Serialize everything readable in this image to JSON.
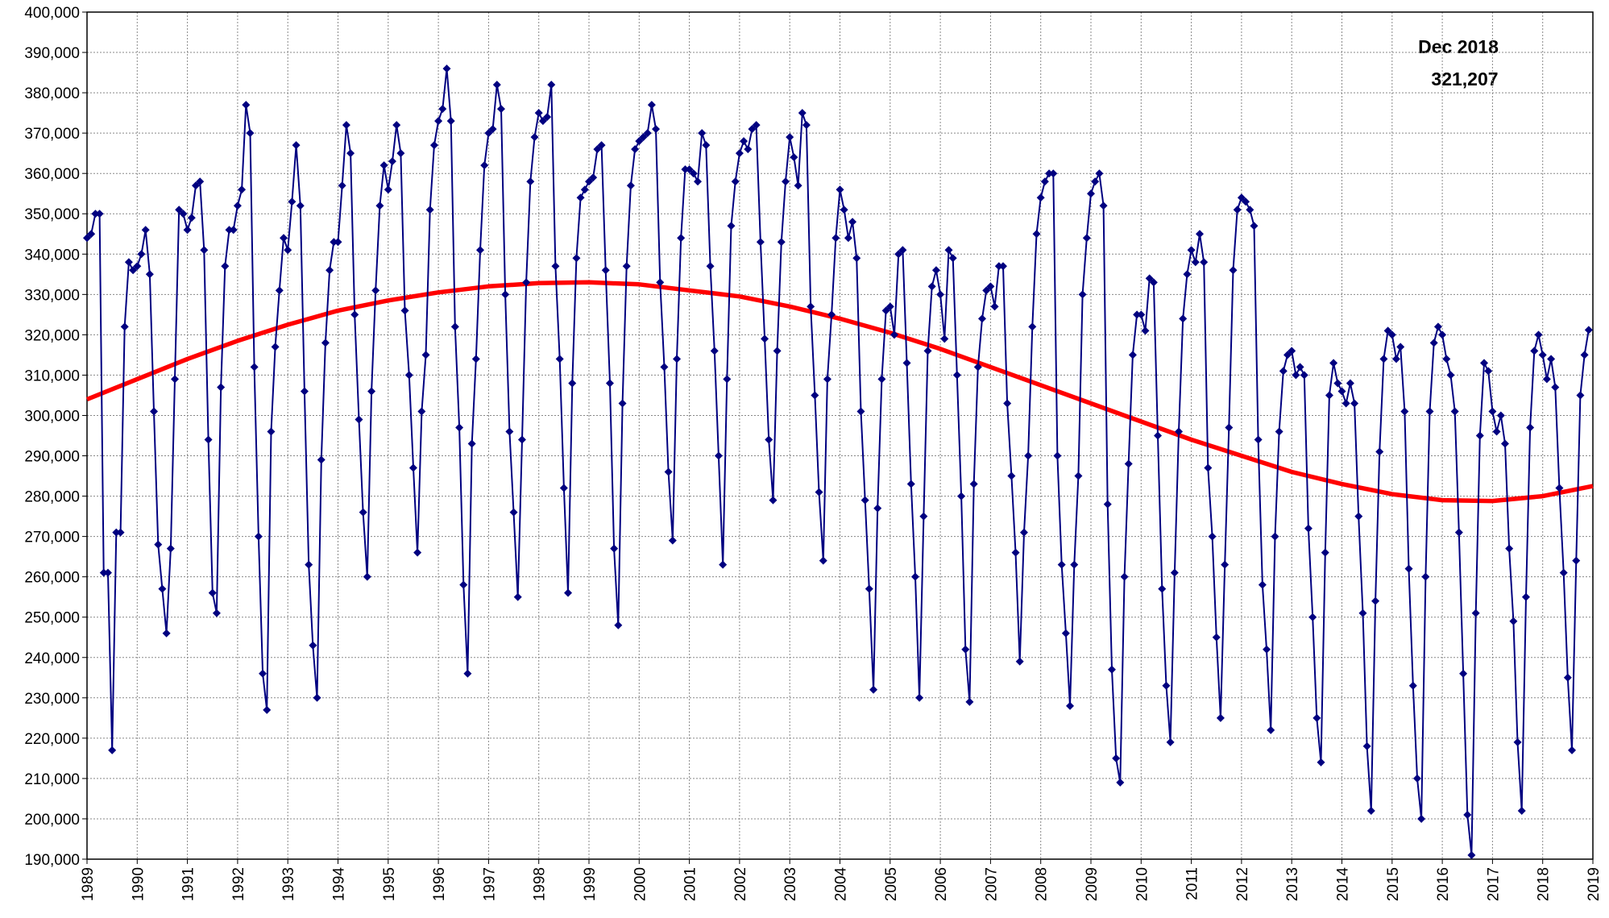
{
  "chart_data": {
    "type": "line",
    "annotations": [
      "Dec 2018",
      "321,207"
    ],
    "xlim": [
      1989,
      2019
    ],
    "xticks": [
      1989,
      1990,
      1991,
      1992,
      1993,
      1994,
      1995,
      1996,
      1997,
      1998,
      1999,
      2000,
      2001,
      2002,
      2003,
      2004,
      2005,
      2006,
      2007,
      2008,
      2009,
      2010,
      2011,
      2012,
      2013,
      2014,
      2015,
      2016,
      2017,
      2018,
      2019
    ],
    "ylim": [
      190000,
      400000
    ],
    "yticks": [
      {
        "value": 190000,
        "label": "190,000"
      },
      {
        "value": 200000,
        "label": "200,000"
      },
      {
        "value": 210000,
        "label": "210,000"
      },
      {
        "value": 220000,
        "label": "220,000"
      },
      {
        "value": 230000,
        "label": "230,000"
      },
      {
        "value": 240000,
        "label": "240,000"
      },
      {
        "value": 250000,
        "label": "250,000"
      },
      {
        "value": 260000,
        "label": "260,000"
      },
      {
        "value": 270000,
        "label": "270,000"
      },
      {
        "value": 280000,
        "label": "280,000"
      },
      {
        "value": 290000,
        "label": "290,000"
      },
      {
        "value": 300000,
        "label": "300,000"
      },
      {
        "value": 310000,
        "label": "310,000"
      },
      {
        "value": 320000,
        "label": "320,000"
      },
      {
        "value": 330000,
        "label": "330,000"
      },
      {
        "value": 340000,
        "label": "340,000"
      },
      {
        "value": 350000,
        "label": "350,000"
      },
      {
        "value": 360000,
        "label": "360,000"
      },
      {
        "value": 370000,
        "label": "370,000"
      },
      {
        "value": 380000,
        "label": "380,000"
      },
      {
        "value": 390000,
        "label": "390,000"
      },
      {
        "value": 400000,
        "label": "400,000"
      }
    ],
    "grid": true,
    "series": [
      {
        "color": "#000080",
        "marker": "diamond",
        "x": [
          1989,
          1989.083,
          1989.167,
          1989.25,
          1989.333,
          1989.417,
          1989.5,
          1989.583,
          1989.667,
          1989.75,
          1989.833,
          1989.917,
          1990,
          1990.083,
          1990.167,
          1990.25,
          1990.333,
          1990.417,
          1990.5,
          1990.583,
          1990.667,
          1990.75,
          1990.833,
          1990.917,
          1991,
          1991.083,
          1991.167,
          1991.25,
          1991.333,
          1991.417,
          1991.5,
          1991.583,
          1991.667,
          1991.75,
          1991.833,
          1991.917,
          1992,
          1992.083,
          1992.167,
          1992.25,
          1992.333,
          1992.417,
          1992.5,
          1992.583,
          1992.667,
          1992.75,
          1992.833,
          1992.917,
          1993,
          1993.083,
          1993.167,
          1993.25,
          1993.333,
          1993.417,
          1993.5,
          1993.583,
          1993.667,
          1993.75,
          1993.833,
          1993.917,
          1994,
          1994.083,
          1994.167,
          1994.25,
          1994.333,
          1994.417,
          1994.5,
          1994.583,
          1994.667,
          1994.75,
          1994.833,
          1994.917,
          1995,
          1995.083,
          1995.167,
          1995.25,
          1995.333,
          1995.417,
          1995.5,
          1995.583,
          1995.667,
          1995.75,
          1995.833,
          1995.917,
          1996,
          1996.083,
          1996.167,
          1996.25,
          1996.333,
          1996.417,
          1996.5,
          1996.583,
          1996.667,
          1996.75,
          1996.833,
          1996.917,
          1997,
          1997.083,
          1997.167,
          1997.25,
          1997.333,
          1997.417,
          1997.5,
          1997.583,
          1997.667,
          1997.75,
          1997.833,
          1997.917,
          1998,
          1998.083,
          1998.167,
          1998.25,
          1998.333,
          1998.417,
          1998.5,
          1998.583,
          1998.667,
          1998.75,
          1998.833,
          1998.917,
          1999,
          1999.083,
          1999.167,
          1999.25,
          1999.333,
          1999.417,
          1999.5,
          1999.583,
          1999.667,
          1999.75,
          1999.833,
          1999.917,
          2000,
          2000.083,
          2000.167,
          2000.25,
          2000.333,
          2000.417,
          2000.5,
          2000.583,
          2000.667,
          2000.75,
          2000.833,
          2000.917,
          2001,
          2001.083,
          2001.167,
          2001.25,
          2001.333,
          2001.417,
          2001.5,
          2001.583,
          2001.667,
          2001.75,
          2001.833,
          2001.917,
          2002,
          2002.083,
          2002.167,
          2002.25,
          2002.333,
          2002.417,
          2002.5,
          2002.583,
          2002.667,
          2002.75,
          2002.833,
          2002.917,
          2003,
          2003.083,
          2003.167,
          2003.25,
          2003.333,
          2003.417,
          2003.5,
          2003.583,
          2003.667,
          2003.75,
          2003.833,
          2003.917,
          2004,
          2004.083,
          2004.167,
          2004.25,
          2004.333,
          2004.417,
          2004.5,
          2004.583,
          2004.667,
          2004.75,
          2004.833,
          2004.917,
          2005,
          2005.083,
          2005.167,
          2005.25,
          2005.333,
          2005.417,
          2005.5,
          2005.583,
          2005.667,
          2005.75,
          2005.833,
          2005.917,
          2006,
          2006.083,
          2006.167,
          2006.25,
          2006.333,
          2006.417,
          2006.5,
          2006.583,
          2006.667,
          2006.75,
          2006.833,
          2006.917,
          2007,
          2007.083,
          2007.167,
          2007.25,
          2007.333,
          2007.417,
          2007.5,
          2007.583,
          2007.667,
          2007.75,
          2007.833,
          2007.917,
          2008,
          2008.083,
          2008.167,
          2008.25,
          2008.333,
          2008.417,
          2008.5,
          2008.583,
          2008.667,
          2008.75,
          2008.833,
          2008.917,
          2009,
          2009.083,
          2009.167,
          2009.25,
          2009.333,
          2009.417,
          2009.5,
          2009.583,
          2009.667,
          2009.75,
          2009.833,
          2009.917,
          2010,
          2010.083,
          2010.167,
          2010.25,
          2010.333,
          2010.417,
          2010.5,
          2010.583,
          2010.667,
          2010.75,
          2010.833,
          2010.917,
          2011,
          2011.083,
          2011.167,
          2011.25,
          2011.333,
          2011.417,
          2011.5,
          2011.583,
          2011.667,
          2011.75,
          2011.833,
          2011.917,
          2012,
          2012.083,
          2012.167,
          2012.25,
          2012.333,
          2012.417,
          2012.5,
          2012.583,
          2012.667,
          2012.75,
          2012.833,
          2012.917,
          2013,
          2013.083,
          2013.167,
          2013.25,
          2013.333,
          2013.417,
          2013.5,
          2013.583,
          2013.667,
          2013.75,
          2013.833,
          2013.917,
          2014,
          2014.083,
          2014.167,
          2014.25,
          2014.333,
          2014.417,
          2014.5,
          2014.583,
          2014.667,
          2014.75,
          2014.833,
          2014.917,
          2015,
          2015.083,
          2015.167,
          2015.25,
          2015.333,
          2015.417,
          2015.5,
          2015.583,
          2015.667,
          2015.75,
          2015.833,
          2015.917,
          2016,
          2016.083,
          2016.167,
          2016.25,
          2016.333,
          2016.417,
          2016.5,
          2016.583,
          2016.667,
          2016.75,
          2016.833,
          2016.917,
          2017,
          2017.083,
          2017.167,
          2017.25,
          2017.333,
          2017.417,
          2017.5,
          2017.583,
          2017.667,
          2017.75,
          2017.833,
          2017.917,
          2018,
          2018.083,
          2018.167,
          2018.25,
          2018.333,
          2018.417,
          2018.5,
          2018.583,
          2018.667,
          2018.75,
          2018.833,
          2018.917
        ],
        "values": [
          344000,
          345000,
          350000,
          350000,
          261000,
          261000,
          217000,
          271000,
          271000,
          322000,
          338000,
          336000,
          337000,
          340000,
          346000,
          335000,
          301000,
          268000,
          257000,
          246000,
          267000,
          309000,
          351000,
          350000,
          346000,
          349000,
          357000,
          358000,
          341000,
          294000,
          256000,
          251000,
          307000,
          337000,
          346000,
          346000,
          352000,
          356000,
          377000,
          370000,
          312000,
          270000,
          236000,
          227000,
          296000,
          317000,
          331000,
          344000,
          341000,
          353000,
          367000,
          352000,
          306000,
          263000,
          243000,
          230000,
          289000,
          318000,
          336000,
          343000,
          343000,
          357000,
          372000,
          365000,
          325000,
          299000,
          276000,
          260000,
          306000,
          331000,
          352000,
          362000,
          356000,
          363000,
          372000,
          365000,
          326000,
          310000,
          287000,
          266000,
          301000,
          315000,
          351000,
          367000,
          373000,
          376000,
          386000,
          373000,
          322000,
          297000,
          258000,
          236000,
          293000,
          314000,
          341000,
          362000,
          370000,
          371000,
          382000,
          376000,
          330000,
          296000,
          276000,
          255000,
          294000,
          333000,
          358000,
          369000,
          375000,
          373000,
          374000,
          382000,
          337000,
          314000,
          282000,
          256000,
          308000,
          339000,
          354000,
          356000,
          358000,
          359000,
          366000,
          367000,
          336000,
          308000,
          267000,
          248000,
          303000,
          337000,
          357000,
          366000,
          368000,
          369000,
          370000,
          377000,
          371000,
          333000,
          312000,
          286000,
          269000,
          314000,
          344000,
          361000,
          361000,
          360000,
          358000,
          370000,
          367000,
          337000,
          316000,
          290000,
          263000,
          309000,
          347000,
          358000,
          365000,
          368000,
          366000,
          371000,
          372000,
          343000,
          319000,
          294000,
          279000,
          316000,
          343000,
          358000,
          369000,
          364000,
          357000,
          375000,
          372000,
          327000,
          305000,
          281000,
          264000,
          309000,
          325000,
          344000,
          356000,
          351000,
          344000,
          348000,
          339000,
          301000,
          279000,
          257000,
          232000,
          277000,
          309000,
          326000,
          327000,
          320000,
          340000,
          341000,
          313000,
          283000,
          260000,
          230000,
          275000,
          316000,
          332000,
          336000,
          330000,
          319000,
          341000,
          339000,
          310000,
          280000,
          242000,
          229000,
          283000,
          312000,
          324000,
          331000,
          332000,
          327000,
          337000,
          337000,
          303000,
          285000,
          266000,
          239000,
          271000,
          290000,
          322000,
          345000,
          354000,
          358000,
          360000,
          360000,
          290000,
          263000,
          246000,
          228000,
          263000,
          285000,
          330000,
          344000,
          355000,
          358000,
          360000,
          352000,
          278000,
          237000,
          215000,
          209000,
          260000,
          288000,
          315000,
          325000,
          325000,
          321000,
          334000,
          333000,
          295000,
          257000,
          233000,
          219000,
          261000,
          296000,
          324000,
          335000,
          341000,
          338000,
          345000,
          338000,
          287000,
          270000,
          245000,
          225000,
          263000,
          297000,
          336000,
          351000,
          354000,
          353000,
          351000,
          347000,
          294000,
          258000,
          242000,
          222000,
          270000,
          296000,
          311000,
          315000,
          316000,
          310000,
          312000,
          310000,
          272000,
          250000,
          225000,
          214000,
          266000,
          305000,
          313000,
          308000,
          306000,
          303000,
          308000,
          303000,
          275000,
          251000,
          218000,
          202000,
          254000,
          291000,
          314000,
          321000,
          320000,
          314000,
          317000,
          301000,
          262000,
          233000,
          210000,
          200000,
          260000,
          301000,
          318000,
          322000,
          320000,
          314000,
          310000,
          301000,
          271000,
          236000,
          201000,
          191000,
          251000,
          295000,
          313000,
          311000,
          301000,
          296000,
          300000,
          293000,
          267000,
          249000,
          219000,
          202000,
          255000,
          297000,
          316000,
          320000,
          315000,
          309000,
          314000,
          307000,
          282000,
          261000,
          235000,
          217000,
          264000,
          305000,
          315000,
          321207
        ]
      },
      {
        "color": "#ff0000",
        "marker": "none",
        "x": [
          1989,
          1990,
          1991,
          1992,
          1993,
          1994,
          1995,
          1996,
          1997,
          1998,
          1999,
          2000,
          2001,
          2002,
          2003,
          2004,
          2005,
          2006,
          2007,
          2008,
          2009,
          2010,
          2011,
          2012,
          2013,
          2014,
          2015,
          2016,
          2017,
          2018,
          2019
        ],
        "values": [
          304000,
          309000,
          314000,
          318500,
          322500,
          326000,
          328500,
          330500,
          332000,
          332800,
          333000,
          332500,
          331000,
          329500,
          327000,
          324000,
          320500,
          316500,
          312000,
          307500,
          303000,
          298500,
          294000,
          290000,
          286000,
          283000,
          280500,
          279000,
          278800,
          280000,
          282500
        ]
      }
    ]
  }
}
